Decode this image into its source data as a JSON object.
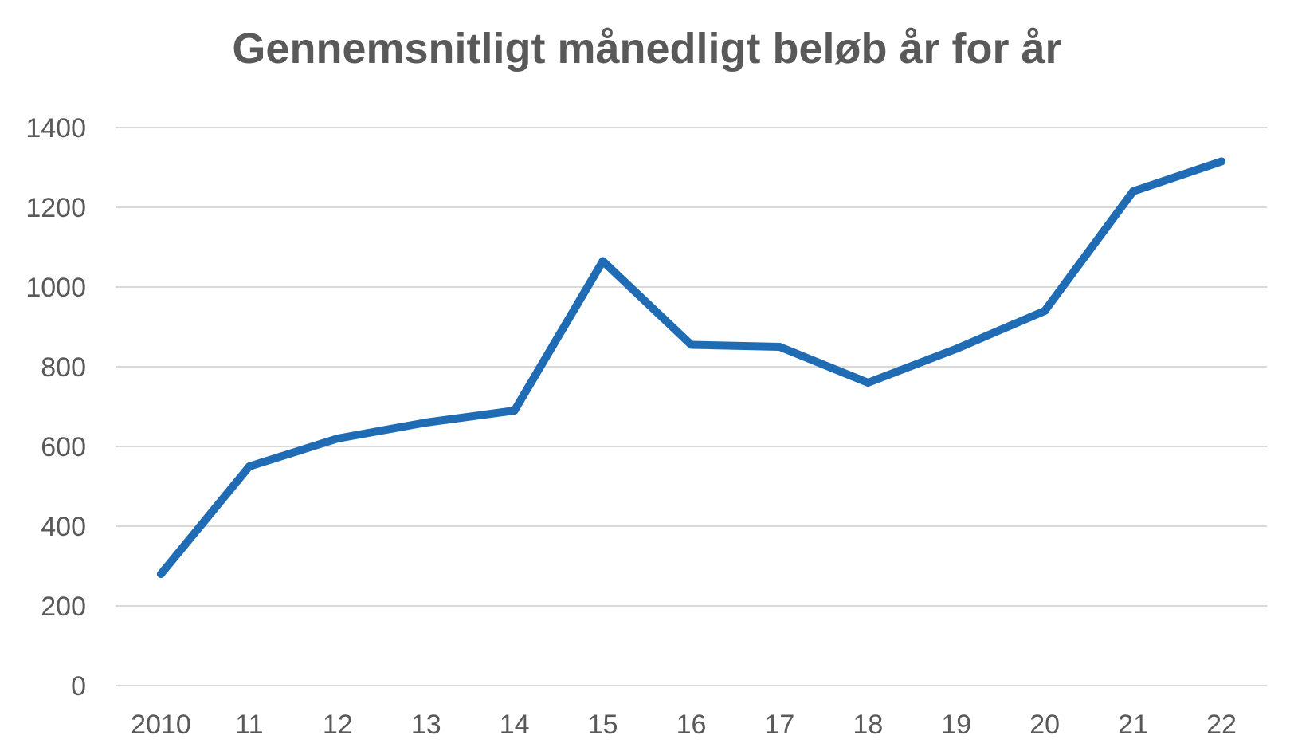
{
  "chart_data": {
    "type": "line",
    "title": "Gennemsnitligt månedligt beløb år for år",
    "xlabel": "",
    "ylabel": "",
    "categories": [
      "2010",
      "11",
      "12",
      "13",
      "14",
      "15",
      "16",
      "17",
      "18",
      "19",
      "20",
      "21",
      "22"
    ],
    "series": [
      {
        "values": [
          280,
          550,
          620,
          660,
          690,
          1065,
          855,
          850,
          760,
          845,
          940,
          1240,
          1315
        ],
        "color": "#1f6cb5"
      }
    ],
    "ylim": [
      0,
      1400
    ],
    "yticks": [
      "0",
      "200",
      "400",
      "600",
      "800",
      "1000",
      "1200",
      "1400"
    ],
    "grid": true,
    "gridColor": "#d9d9d9",
    "legend": "none"
  }
}
